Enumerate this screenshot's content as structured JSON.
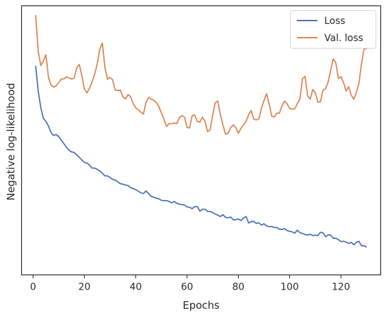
{
  "chart_data": {
    "type": "line",
    "xlabel": "Epochs",
    "ylabel": "Negative log-likelihood",
    "xlim": [
      -4.5,
      135.5
    ],
    "ylim": [
      0,
      1
    ],
    "xticks": [
      0,
      20,
      40,
      60,
      80,
      100,
      120
    ],
    "yticks": [],
    "grid": false,
    "legend_position": "top-right",
    "x": [
      1,
      2,
      3,
      4,
      5,
      6,
      7,
      8,
      9,
      10,
      11,
      12,
      13,
      14,
      15,
      16,
      17,
      18,
      19,
      20,
      21,
      22,
      23,
      24,
      25,
      26,
      27,
      28,
      29,
      30,
      31,
      32,
      33,
      34,
      35,
      36,
      37,
      38,
      39,
      40,
      41,
      42,
      43,
      44,
      45,
      46,
      47,
      48,
      49,
      50,
      51,
      52,
      53,
      54,
      55,
      56,
      57,
      58,
      59,
      60,
      61,
      62,
      63,
      64,
      65,
      66,
      67,
      68,
      69,
      70,
      71,
      72,
      73,
      74,
      75,
      76,
      77,
      78,
      79,
      80,
      81,
      82,
      83,
      84,
      85,
      86,
      87,
      88,
      89,
      90,
      91,
      92,
      93,
      94,
      95,
      96,
      97,
      98,
      99,
      100,
      101,
      102,
      103,
      104,
      105,
      106,
      107,
      108,
      109,
      110,
      111,
      112,
      113,
      114,
      115,
      116,
      117,
      118,
      119,
      120,
      121,
      122,
      123,
      124,
      125,
      126,
      127,
      128,
      129,
      130
    ],
    "series": [
      {
        "name": "Loss",
        "color": "#4c72b0",
        "values": [
          0.777,
          0.683,
          0.622,
          0.582,
          0.57,
          0.553,
          0.529,
          0.518,
          0.522,
          0.514,
          0.5,
          0.488,
          0.474,
          0.463,
          0.457,
          0.455,
          0.446,
          0.437,
          0.427,
          0.418,
          0.416,
          0.408,
          0.397,
          0.397,
          0.392,
          0.386,
          0.378,
          0.368,
          0.368,
          0.362,
          0.355,
          0.352,
          0.346,
          0.339,
          0.337,
          0.334,
          0.332,
          0.324,
          0.321,
          0.317,
          0.311,
          0.305,
          0.302,
          0.312,
          0.303,
          0.292,
          0.289,
          0.285,
          0.283,
          0.277,
          0.276,
          0.276,
          0.273,
          0.268,
          0.273,
          0.266,
          0.263,
          0.261,
          0.26,
          0.253,
          0.251,
          0.246,
          0.254,
          0.254,
          0.237,
          0.244,
          0.244,
          0.236,
          0.236,
          0.232,
          0.226,
          0.222,
          0.217,
          0.224,
          0.214,
          0.212,
          0.215,
          0.205,
          0.205,
          0.208,
          0.202,
          0.211,
          0.217,
          0.193,
          0.198,
          0.199,
          0.191,
          0.194,
          0.185,
          0.19,
          0.182,
          0.179,
          0.18,
          0.176,
          0.176,
          0.17,
          0.169,
          0.172,
          0.165,
          0.162,
          0.16,
          0.155,
          0.166,
          0.157,
          0.154,
          0.15,
          0.148,
          0.151,
          0.146,
          0.148,
          0.146,
          0.158,
          0.157,
          0.142,
          0.149,
          0.148,
          0.136,
          0.136,
          0.131,
          0.124,
          0.125,
          0.122,
          0.117,
          0.121,
          0.112,
          0.121,
          0.125,
          0.108,
          0.109,
          0.103
        ]
      },
      {
        "name": "Val. loss",
        "color": "#dd8452",
        "values": [
          0.966,
          0.831,
          0.778,
          0.795,
          0.818,
          0.734,
          0.705,
          0.698,
          0.703,
          0.715,
          0.728,
          0.728,
          0.736,
          0.732,
          0.728,
          0.731,
          0.77,
          0.782,
          0.741,
          0.69,
          0.677,
          0.694,
          0.718,
          0.746,
          0.784,
          0.839,
          0.862,
          0.771,
          0.727,
          0.734,
          0.725,
          0.687,
          0.685,
          0.687,
          0.662,
          0.654,
          0.67,
          0.662,
          0.636,
          0.621,
          0.614,
          0.605,
          0.598,
          0.64,
          0.659,
          0.654,
          0.649,
          0.641,
          0.626,
          0.602,
          0.579,
          0.552,
          0.562,
          0.562,
          0.564,
          0.562,
          0.584,
          0.592,
          0.586,
          0.548,
          0.546,
          0.592,
          0.594,
          0.571,
          0.568,
          0.586,
          0.571,
          0.532,
          0.539,
          0.594,
          0.64,
          0.646,
          0.595,
          0.557,
          0.523,
          0.526,
          0.547,
          0.557,
          0.548,
          0.526,
          0.545,
          0.557,
          0.57,
          0.595,
          0.611,
          0.579,
          0.576,
          0.579,
          0.619,
          0.648,
          0.673,
          0.636,
          0.59,
          0.587,
          0.601,
          0.601,
          0.627,
          0.646,
          0.636,
          0.618,
          0.616,
          0.617,
          0.637,
          0.653,
          0.729,
          0.738,
          0.666,
          0.653,
          0.689,
          0.677,
          0.642,
          0.643,
          0.686,
          0.692,
          0.717,
          0.76,
          0.803,
          0.788,
          0.73,
          0.737,
          0.715,
          0.683,
          0.699,
          0.668,
          0.653,
          0.677,
          0.712,
          0.784,
          0.84,
          0.84
        ]
      }
    ]
  }
}
